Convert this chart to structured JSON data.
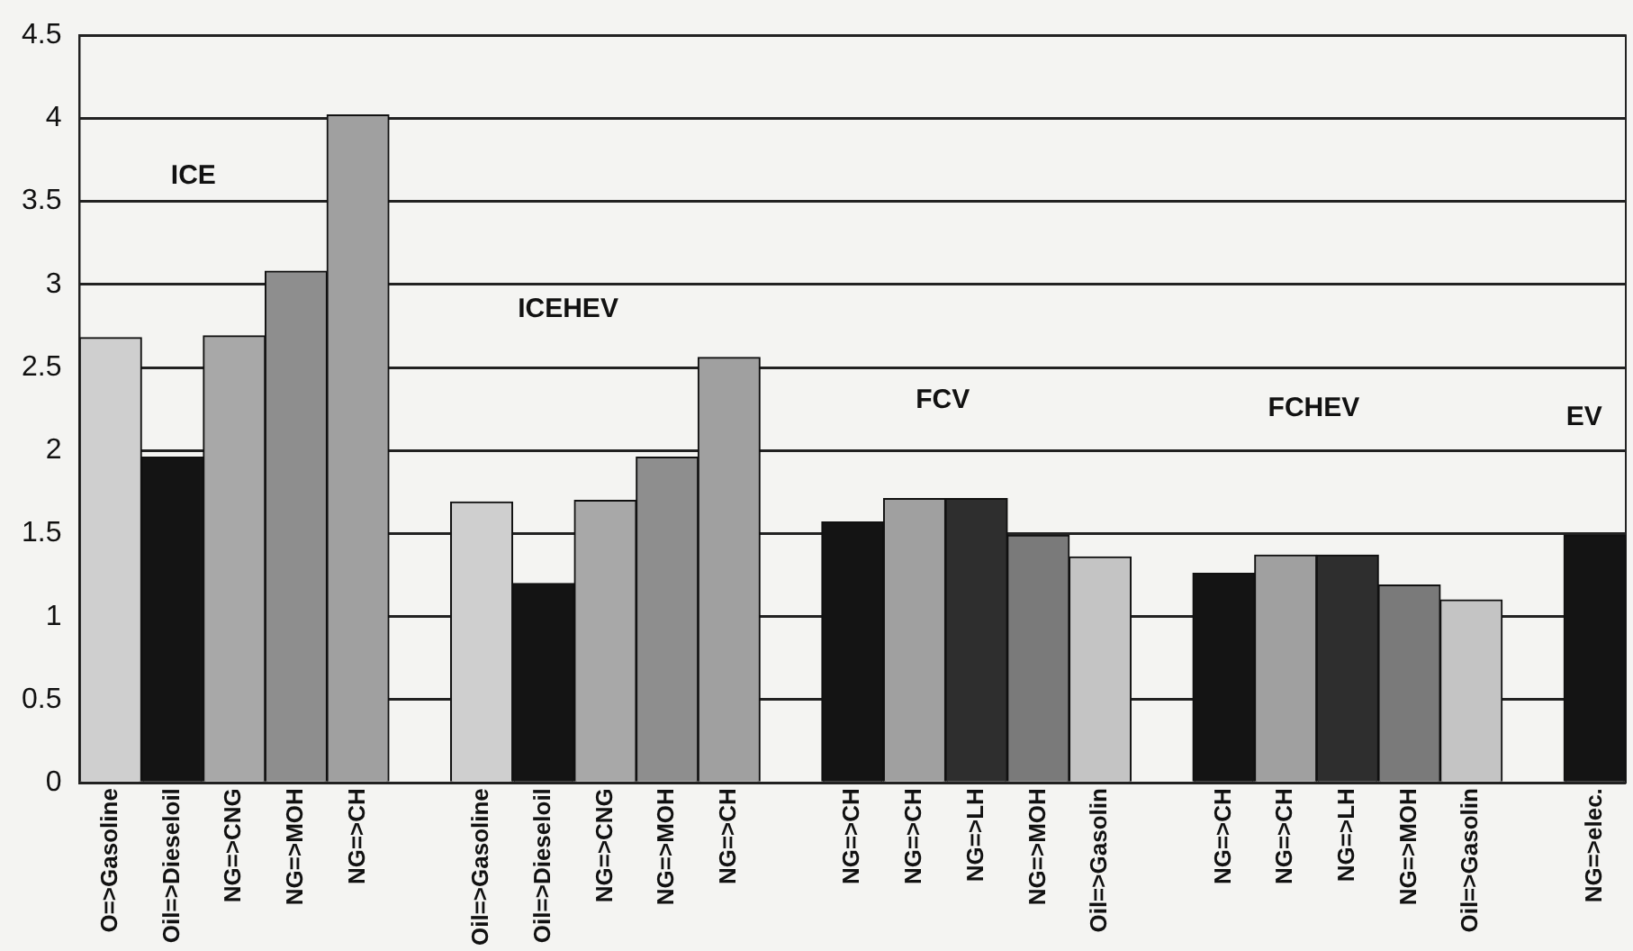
{
  "chart_data": {
    "type": "bar",
    "categories": [
      "O=>Gasoline",
      "Oil=>Dieseloil",
      "NG=>CNG",
      "NG=>MOH",
      "NG=>CH",
      null,
      "Oil=>Gasoline",
      "Oil=>Dieseloil",
      "NG=>CNG",
      "NG=>MOH",
      "NG=>CH",
      null,
      "NG=>CH",
      "NG=>CH",
      "NG=>LH",
      "NG=>MOH",
      "Oil=>Gasolin",
      null,
      "NG=>CH",
      "NG=>CH",
      "NG=>LH",
      "NG=>MOH",
      "Oil=>Gasolin",
      null,
      "NG=>elec."
    ],
    "values": [
      2.68,
      1.96,
      2.69,
      3.08,
      4.02,
      null,
      1.69,
      1.2,
      1.7,
      1.96,
      2.56,
      null,
      1.57,
      1.71,
      1.71,
      1.49,
      1.36,
      null,
      1.26,
      1.37,
      1.37,
      1.19,
      1.1,
      null,
      1.49
    ],
    "colors": [
      "#cfcfcf",
      "#141414",
      "#a8a8a8",
      "#8e8e8e",
      "#a0a0a0",
      null,
      "#cfcfcf",
      "#141414",
      "#a8a8a8",
      "#8e8e8e",
      "#a0a0a0",
      null,
      "#141414",
      "#a0a0a0",
      "#2e2e2e",
      "#7a7a7a",
      "#c4c4c4",
      null,
      "#141414",
      "#a0a0a0",
      "#2e2e2e",
      "#7a7a7a",
      "#c4c4c4",
      null,
      "#141414"
    ],
    "ylim": [
      0,
      4.5
    ],
    "yticks": [
      0,
      0.5,
      1,
      1.5,
      2,
      2.5,
      3,
      3.5,
      4,
      4.5
    ],
    "grid": "y",
    "annotations": [
      "ICE",
      "ICEHEV",
      "FCV",
      "FCHEV",
      "EV"
    ]
  }
}
